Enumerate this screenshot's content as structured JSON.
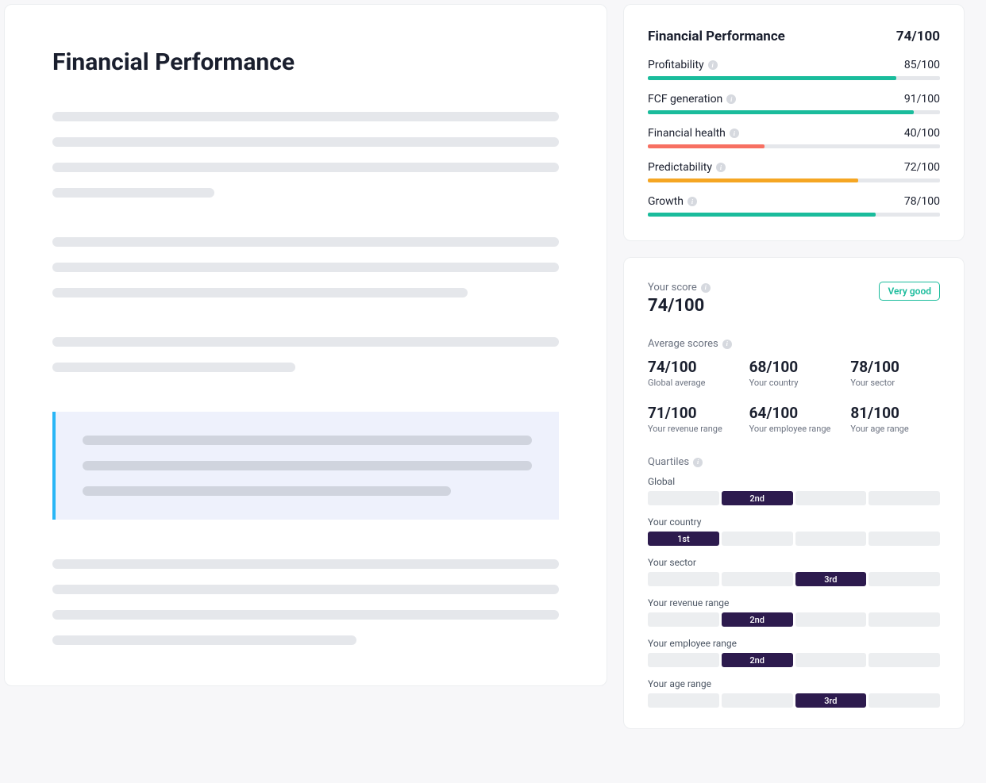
{
  "colors": {
    "green": "#1abc9c",
    "red": "#f77062",
    "orange": "#f5a623",
    "dark_purple": "#2d1b4e",
    "track": "#e5e7eb",
    "skeleton": "#e5e7eb",
    "callout_bg": "#eef1fc",
    "callout_border": "#29b6f6"
  },
  "left": {
    "title": "Financial Performance",
    "blocks": [
      {
        "type": "skeleton",
        "lines": [
          100,
          100,
          100,
          32
        ]
      },
      {
        "type": "skeleton",
        "lines": [
          100,
          100,
          82
        ]
      },
      {
        "type": "skeleton",
        "lines": [
          100,
          48
        ]
      },
      {
        "type": "callout",
        "lines": [
          100,
          100,
          82
        ]
      },
      {
        "type": "skeleton",
        "lines": [
          100,
          100,
          100,
          60
        ]
      }
    ]
  },
  "performance": {
    "title": "Financial Performance",
    "score": "74/100",
    "metrics": [
      {
        "label": "Profitability",
        "value": "85/100",
        "pct": 85,
        "color": "#1abc9c"
      },
      {
        "label": "FCF generation",
        "value": "91/100",
        "pct": 91,
        "color": "#1abc9c"
      },
      {
        "label": "Financial health",
        "value": "40/100",
        "pct": 40,
        "color": "#f77062"
      },
      {
        "label": "Predictability",
        "value": "72/100",
        "pct": 72,
        "color": "#f5a623"
      },
      {
        "label": "Growth",
        "value": "78/100",
        "pct": 78,
        "color": "#1abc9c"
      }
    ]
  },
  "score_card": {
    "your_score_label": "Your score",
    "your_score_value": "74/100",
    "badge": "Very good",
    "avg_label": "Average scores",
    "averages": [
      {
        "value": "74/100",
        "label": "Global average"
      },
      {
        "value": "68/100",
        "label": "Your country"
      },
      {
        "value": "78/100",
        "label": "Your sector"
      },
      {
        "value": "71/100",
        "label": "Your revenue range"
      },
      {
        "value": "64/100",
        "label": "Your employee range"
      },
      {
        "value": "81/100",
        "label": "Your age range"
      }
    ],
    "quartiles_label": "Quartiles",
    "quartiles": [
      {
        "label": "Global",
        "active": 2,
        "text": "2nd"
      },
      {
        "label": "Your country",
        "active": 1,
        "text": "1st"
      },
      {
        "label": "Your sector",
        "active": 3,
        "text": "3rd"
      },
      {
        "label": "Your revenue range",
        "active": 2,
        "text": "2nd"
      },
      {
        "label": "Your employee range",
        "active": 2,
        "text": "2nd"
      },
      {
        "label": "Your age range",
        "active": 3,
        "text": "3rd"
      }
    ]
  }
}
